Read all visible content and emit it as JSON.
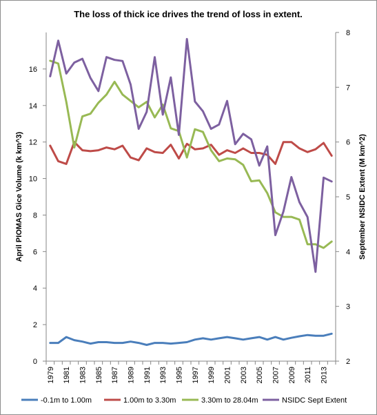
{
  "chart_data": {
    "type": "line",
    "title": "The loss of thick ice drives the trend of loss in extent.",
    "ylabel_left": "April PIOMAS Gice Volume (k km^3)",
    "ylabel_right": "September NSIDC Extent (M km^2)",
    "xlabel": "",
    "x": [
      1979,
      1980,
      1981,
      1982,
      1983,
      1984,
      1985,
      1986,
      1987,
      1988,
      1989,
      1990,
      1991,
      1992,
      1993,
      1994,
      1995,
      1996,
      1997,
      1998,
      1999,
      2000,
      2001,
      2002,
      2003,
      2004,
      2005,
      2006,
      2007,
      2008,
      2009,
      2010,
      2011,
      2012,
      2013,
      2014
    ],
    "x_tick_labels": [
      "1979",
      "1981",
      "1983",
      "1985",
      "1987",
      "1989",
      "1991",
      "1993",
      "1995",
      "1997",
      "1999",
      "2001",
      "2003",
      "2005",
      "2007",
      "2009",
      "2011",
      "2013"
    ],
    "ylim_left": [
      0,
      18
    ],
    "y_ticks_left": [
      "0",
      "2",
      "4",
      "6",
      "8",
      "10",
      "12",
      "14",
      "16"
    ],
    "ylim_right": [
      2,
      8
    ],
    "y_ticks_right": [
      "2",
      "3",
      "4",
      "5",
      "6",
      "7",
      "8"
    ],
    "grid": false,
    "legend_position": "bottom",
    "series": [
      {
        "name": "-0.1m to 1.00m",
        "axis": "left",
        "color": "#4a7ebb",
        "values": [
          1.0,
          1.0,
          1.32,
          1.15,
          1.07,
          0.96,
          1.04,
          1.04,
          1.0,
          1.0,
          1.07,
          1.0,
          0.89,
          1.0,
          1.0,
          0.96,
          1.0,
          1.04,
          1.18,
          1.25,
          1.18,
          1.25,
          1.32,
          1.25,
          1.18,
          1.25,
          1.32,
          1.18,
          1.32,
          1.18,
          1.28,
          1.36,
          1.43,
          1.39,
          1.39,
          1.5
        ]
      },
      {
        "name": "1.00m to 3.30m",
        "axis": "left",
        "color": "#be4b48",
        "values": [
          11.8,
          10.95,
          10.8,
          12.0,
          11.55,
          11.5,
          11.55,
          11.7,
          11.6,
          11.8,
          11.15,
          11.0,
          11.65,
          11.45,
          11.4,
          11.85,
          11.1,
          11.9,
          11.6,
          11.65,
          11.85,
          11.3,
          11.55,
          11.4,
          11.65,
          11.4,
          11.4,
          11.3,
          10.8,
          12.0,
          12.0,
          11.65,
          11.45,
          11.6,
          11.95,
          11.25
        ]
      },
      {
        "name": "3.30m to 28.04m",
        "axis": "left",
        "color": "#98b954",
        "values": [
          16.45,
          16.3,
          14.2,
          11.7,
          13.4,
          13.55,
          14.15,
          14.6,
          15.3,
          14.6,
          14.25,
          13.9,
          14.2,
          13.35,
          14.05,
          12.75,
          12.6,
          11.15,
          12.7,
          12.55,
          11.55,
          10.95,
          11.1,
          11.05,
          10.75,
          9.85,
          9.9,
          9.2,
          8.15,
          7.9,
          7.9,
          7.75,
          6.4,
          6.4,
          6.2,
          6.55
        ]
      },
      {
        "name": "NSIDC Sept Extent",
        "axis": "right",
        "color": "#7d60a0",
        "values": [
          7.2,
          7.85,
          7.25,
          7.45,
          7.52,
          7.17,
          6.93,
          7.55,
          7.5,
          7.48,
          7.05,
          6.24,
          6.55,
          7.55,
          6.5,
          7.18,
          6.13,
          7.88,
          6.74,
          6.56,
          6.24,
          6.32,
          6.75,
          5.96,
          6.15,
          6.05,
          5.57,
          5.92,
          4.3,
          4.73,
          5.36,
          4.9,
          4.63,
          3.63,
          5.35,
          5.28
        ]
      }
    ]
  }
}
